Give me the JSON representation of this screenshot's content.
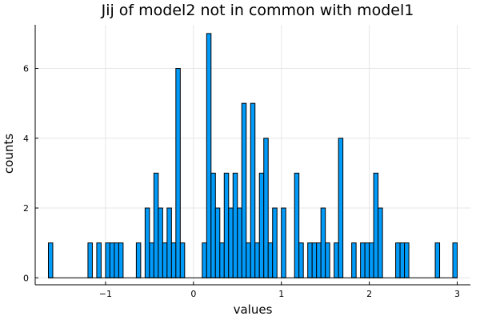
{
  "chart_data": {
    "type": "bar",
    "title": "Jij of model2 not in common with model1",
    "xlabel": "values",
    "ylabel": "counts",
    "bin_width": 0.05,
    "xlim": [
      -1.8,
      3.15
    ],
    "ylim": [
      -0.2,
      7.25
    ],
    "xticks": [
      -1,
      0,
      1,
      2,
      3
    ],
    "xtick_labels": [
      "−1",
      "0",
      "1",
      "2",
      "3"
    ],
    "yticks": [
      0,
      2,
      4,
      6
    ],
    "ytick_labels": [
      "0",
      "2",
      "4",
      "6"
    ],
    "grid": true,
    "legend": "none",
    "bar_color": "#009af9",
    "bins": [
      {
        "x0": -1.65,
        "count": 1
      },
      {
        "x0": -1.2,
        "count": 1
      },
      {
        "x0": -1.1,
        "count": 1
      },
      {
        "x0": -1.0,
        "count": 1
      },
      {
        "x0": -0.95,
        "count": 1
      },
      {
        "x0": -0.9,
        "count": 1
      },
      {
        "x0": -0.85,
        "count": 1
      },
      {
        "x0": -0.65,
        "count": 1
      },
      {
        "x0": -0.55,
        "count": 2
      },
      {
        "x0": -0.5,
        "count": 1
      },
      {
        "x0": -0.45,
        "count": 3
      },
      {
        "x0": -0.4,
        "count": 2
      },
      {
        "x0": -0.35,
        "count": 1
      },
      {
        "x0": -0.3,
        "count": 2
      },
      {
        "x0": -0.25,
        "count": 1
      },
      {
        "x0": -0.2,
        "count": 6
      },
      {
        "x0": -0.15,
        "count": 1
      },
      {
        "x0": 0.1,
        "count": 1
      },
      {
        "x0": 0.15,
        "count": 7
      },
      {
        "x0": 0.2,
        "count": 3
      },
      {
        "x0": 0.25,
        "count": 2
      },
      {
        "x0": 0.3,
        "count": 1
      },
      {
        "x0": 0.35,
        "count": 3
      },
      {
        "x0": 0.4,
        "count": 2
      },
      {
        "x0": 0.45,
        "count": 3
      },
      {
        "x0": 0.5,
        "count": 2
      },
      {
        "x0": 0.55,
        "count": 5
      },
      {
        "x0": 0.6,
        "count": 1
      },
      {
        "x0": 0.65,
        "count": 5
      },
      {
        "x0": 0.7,
        "count": 1
      },
      {
        "x0": 0.75,
        "count": 3
      },
      {
        "x0": 0.8,
        "count": 4
      },
      {
        "x0": 0.85,
        "count": 1
      },
      {
        "x0": 0.9,
        "count": 2
      },
      {
        "x0": 1.0,
        "count": 2
      },
      {
        "x0": 1.15,
        "count": 3
      },
      {
        "x0": 1.2,
        "count": 1
      },
      {
        "x0": 1.3,
        "count": 1
      },
      {
        "x0": 1.35,
        "count": 1
      },
      {
        "x0": 1.4,
        "count": 1
      },
      {
        "x0": 1.45,
        "count": 2
      },
      {
        "x0": 1.5,
        "count": 1
      },
      {
        "x0": 1.6,
        "count": 1
      },
      {
        "x0": 1.65,
        "count": 4
      },
      {
        "x0": 1.8,
        "count": 1
      },
      {
        "x0": 1.9,
        "count": 1
      },
      {
        "x0": 1.95,
        "count": 1
      },
      {
        "x0": 2.0,
        "count": 1
      },
      {
        "x0": 2.05,
        "count": 3
      },
      {
        "x0": 2.1,
        "count": 2
      },
      {
        "x0": 2.3,
        "count": 1
      },
      {
        "x0": 2.35,
        "count": 1
      },
      {
        "x0": 2.4,
        "count": 1
      },
      {
        "x0": 2.75,
        "count": 1
      },
      {
        "x0": 2.95,
        "count": 1
      }
    ]
  }
}
